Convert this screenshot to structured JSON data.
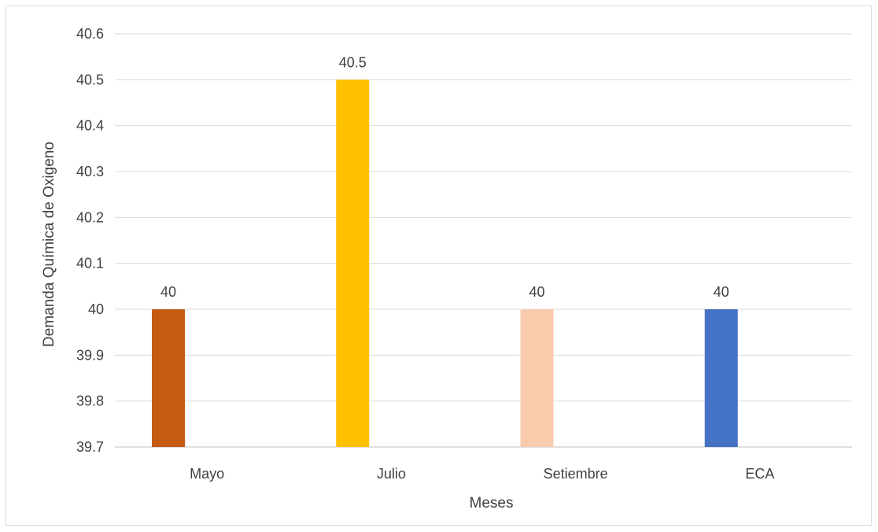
{
  "chart_data": {
    "type": "bar",
    "categories": [
      "Mayo",
      "Julio",
      "Setiembre",
      "ECA"
    ],
    "values": [
      40,
      40.5,
      40,
      40
    ],
    "data_labels": [
      "40",
      "40.5",
      "40",
      "40"
    ],
    "colors": [
      "#c55a11",
      "#ffc000",
      "#f8cbad",
      "#4472c4"
    ],
    "title": "",
    "xlabel": "Meses",
    "ylabel": "Demanda Química de Oxigeno",
    "ylim": [
      39.7,
      40.6
    ],
    "yticks": [
      "39.7",
      "39.8",
      "39.9",
      "40",
      "40.1",
      "40.2",
      "40.3",
      "40.4",
      "40.5",
      "40.6"
    ],
    "grid": true,
    "legend": "none"
  }
}
